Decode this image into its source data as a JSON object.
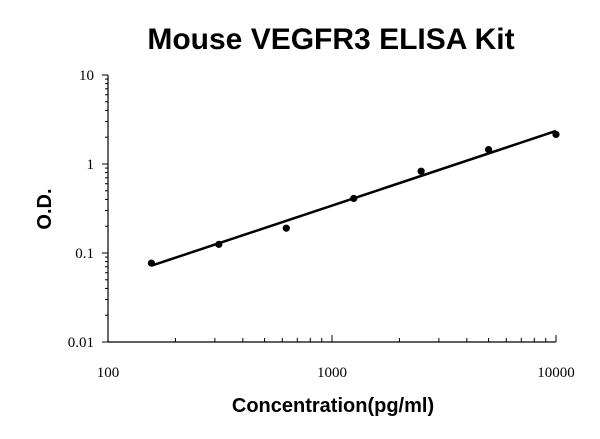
{
  "chart_data": {
    "type": "scatter",
    "title": "Mouse VEGFR3 ELISA Kit",
    "xlabel": "Concentration(pg/ml)",
    "ylabel": "O.D.",
    "x_scale": "log",
    "y_scale": "log",
    "xlim": [
      100,
      10000
    ],
    "ylim": [
      0.01,
      10
    ],
    "x_ticks": [
      "100",
      "1000",
      "10000"
    ],
    "y_ticks": [
      "0.01",
      "0.1",
      "1",
      "10"
    ],
    "grid": false,
    "legend": "none",
    "series": [
      {
        "points": [
          {
            "x": 156.25,
            "y": 0.077
          },
          {
            "x": 312.5,
            "y": 0.125
          },
          {
            "x": 625,
            "y": 0.19
          },
          {
            "x": 1250,
            "y": 0.41
          },
          {
            "x": 2500,
            "y": 0.83
          },
          {
            "x": 5000,
            "y": 1.45
          },
          {
            "x": 10000,
            "y": 2.15
          }
        ]
      }
    ],
    "fit_line": {
      "type": "power",
      "x": [
        156.25,
        10000
      ],
      "y": [
        0.072,
        2.35
      ]
    },
    "colors": {
      "points": "#000000",
      "line": "#000000",
      "axes": "#000000"
    }
  }
}
